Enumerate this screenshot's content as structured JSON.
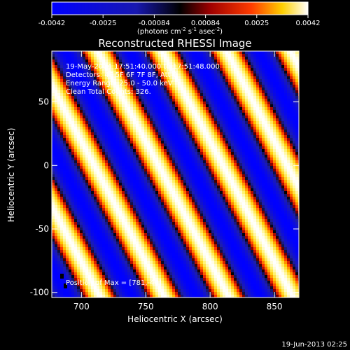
{
  "chart_data": {
    "type": "heatmap",
    "title": "Reconstructed RHESSI Image",
    "xlabel": "Heliocentric X (arcsec)",
    "ylabel": "Heliocentric Y (arcsec)",
    "xlim": [
      677,
      869
    ],
    "ylim": [
      -104,
      90
    ],
    "x_ticks": [
      700,
      750,
      800,
      850
    ],
    "y_ticks": [
      -100,
      -50,
      0,
      50
    ],
    "fringe": {
      "period_x": 50,
      "slope_y_per_x": 1.9
    },
    "colorbar": {
      "ticks": [
        "-0.0042",
        "-0.0025",
        "-0.00084",
        "0.00084",
        "0.0025",
        "0.0042"
      ],
      "units_prefix": "(photons cm",
      "units_sup1": "-2",
      "units_mid": " s",
      "units_sup2": "-1",
      "units_mid2": " asec",
      "units_sup3": "-2",
      "units_suffix": ")",
      "vmin": -0.0042,
      "vmax": 0.0042
    },
    "annotations": [
      "19-May-2004 17:51:40.000 to 17:51:48.000",
      "Detectors: 4F 5F 6F 7F 8F, Att 0",
      "Energy Range: 25.0 - 50.0 keV",
      "Clean     Total Counts: 326."
    ],
    "position_label": "Position of Max = [781,-40]",
    "position_max": [
      781,
      -40
    ],
    "footer": "19-Jun-2013 02:25"
  }
}
